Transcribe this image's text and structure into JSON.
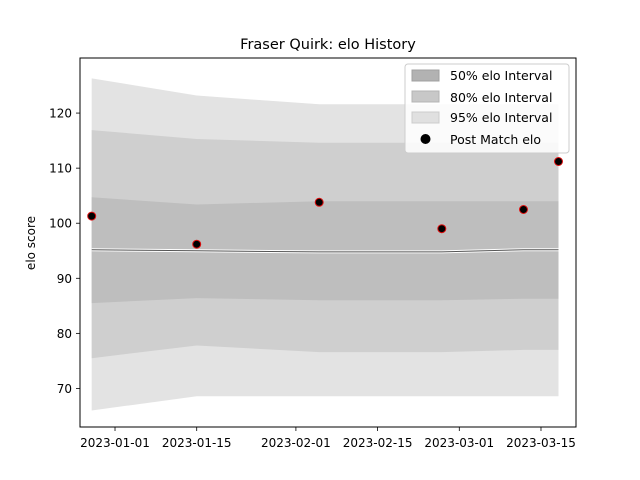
{
  "chart_data": {
    "type": "area",
    "title": "Fraser Quirk: elo History",
    "xlabel": "",
    "ylabel": "elo score",
    "xlim": [
      "2022-12-26",
      "2023-03-21"
    ],
    "ylim": [
      63,
      130
    ],
    "x_ticks": [
      "2023-01-01",
      "2023-01-15",
      "2023-02-01",
      "2023-02-15",
      "2023-03-01",
      "2023-03-15"
    ],
    "y_ticks": [
      70,
      80,
      90,
      100,
      110,
      120
    ],
    "grid": false,
    "legend_position": "top-right",
    "band_dates": [
      "2022-12-28",
      "2023-01-15",
      "2023-02-05",
      "2023-02-26",
      "2023-03-12",
      "2023-03-18"
    ],
    "mean": [
      95.2,
      95.0,
      94.8,
      94.8,
      95.2,
      95.2
    ],
    "bands": [
      {
        "name": "95% elo Interval",
        "color": "#e3e3e3",
        "lower": [
          66.0,
          68.6,
          68.6,
          68.6,
          68.6,
          68.6
        ],
        "upper": [
          126.3,
          123.2,
          121.6,
          121.6,
          121.6,
          121.6
        ]
      },
      {
        "name": "80% elo Interval",
        "color": "#cfcfcf",
        "lower": [
          75.5,
          77.8,
          76.6,
          76.6,
          77.0,
          77.0
        ],
        "upper": [
          116.9,
          115.3,
          114.6,
          114.6,
          114.6,
          114.6
        ]
      },
      {
        "name": "50% elo Interval",
        "color": "#bebebe",
        "lower": [
          85.5,
          86.4,
          86.0,
          86.0,
          86.3,
          86.3
        ],
        "upper": [
          104.7,
          103.4,
          104.0,
          104.0,
          104.0,
          104.0
        ]
      }
    ],
    "points": {
      "name": "Post Match elo",
      "x": [
        "2022-12-28",
        "2023-01-15",
        "2023-02-05",
        "2023-02-26",
        "2023-03-12",
        "2023-03-18"
      ],
      "y": [
        101.3,
        96.2,
        103.8,
        99.0,
        102.5,
        111.2
      ]
    }
  }
}
